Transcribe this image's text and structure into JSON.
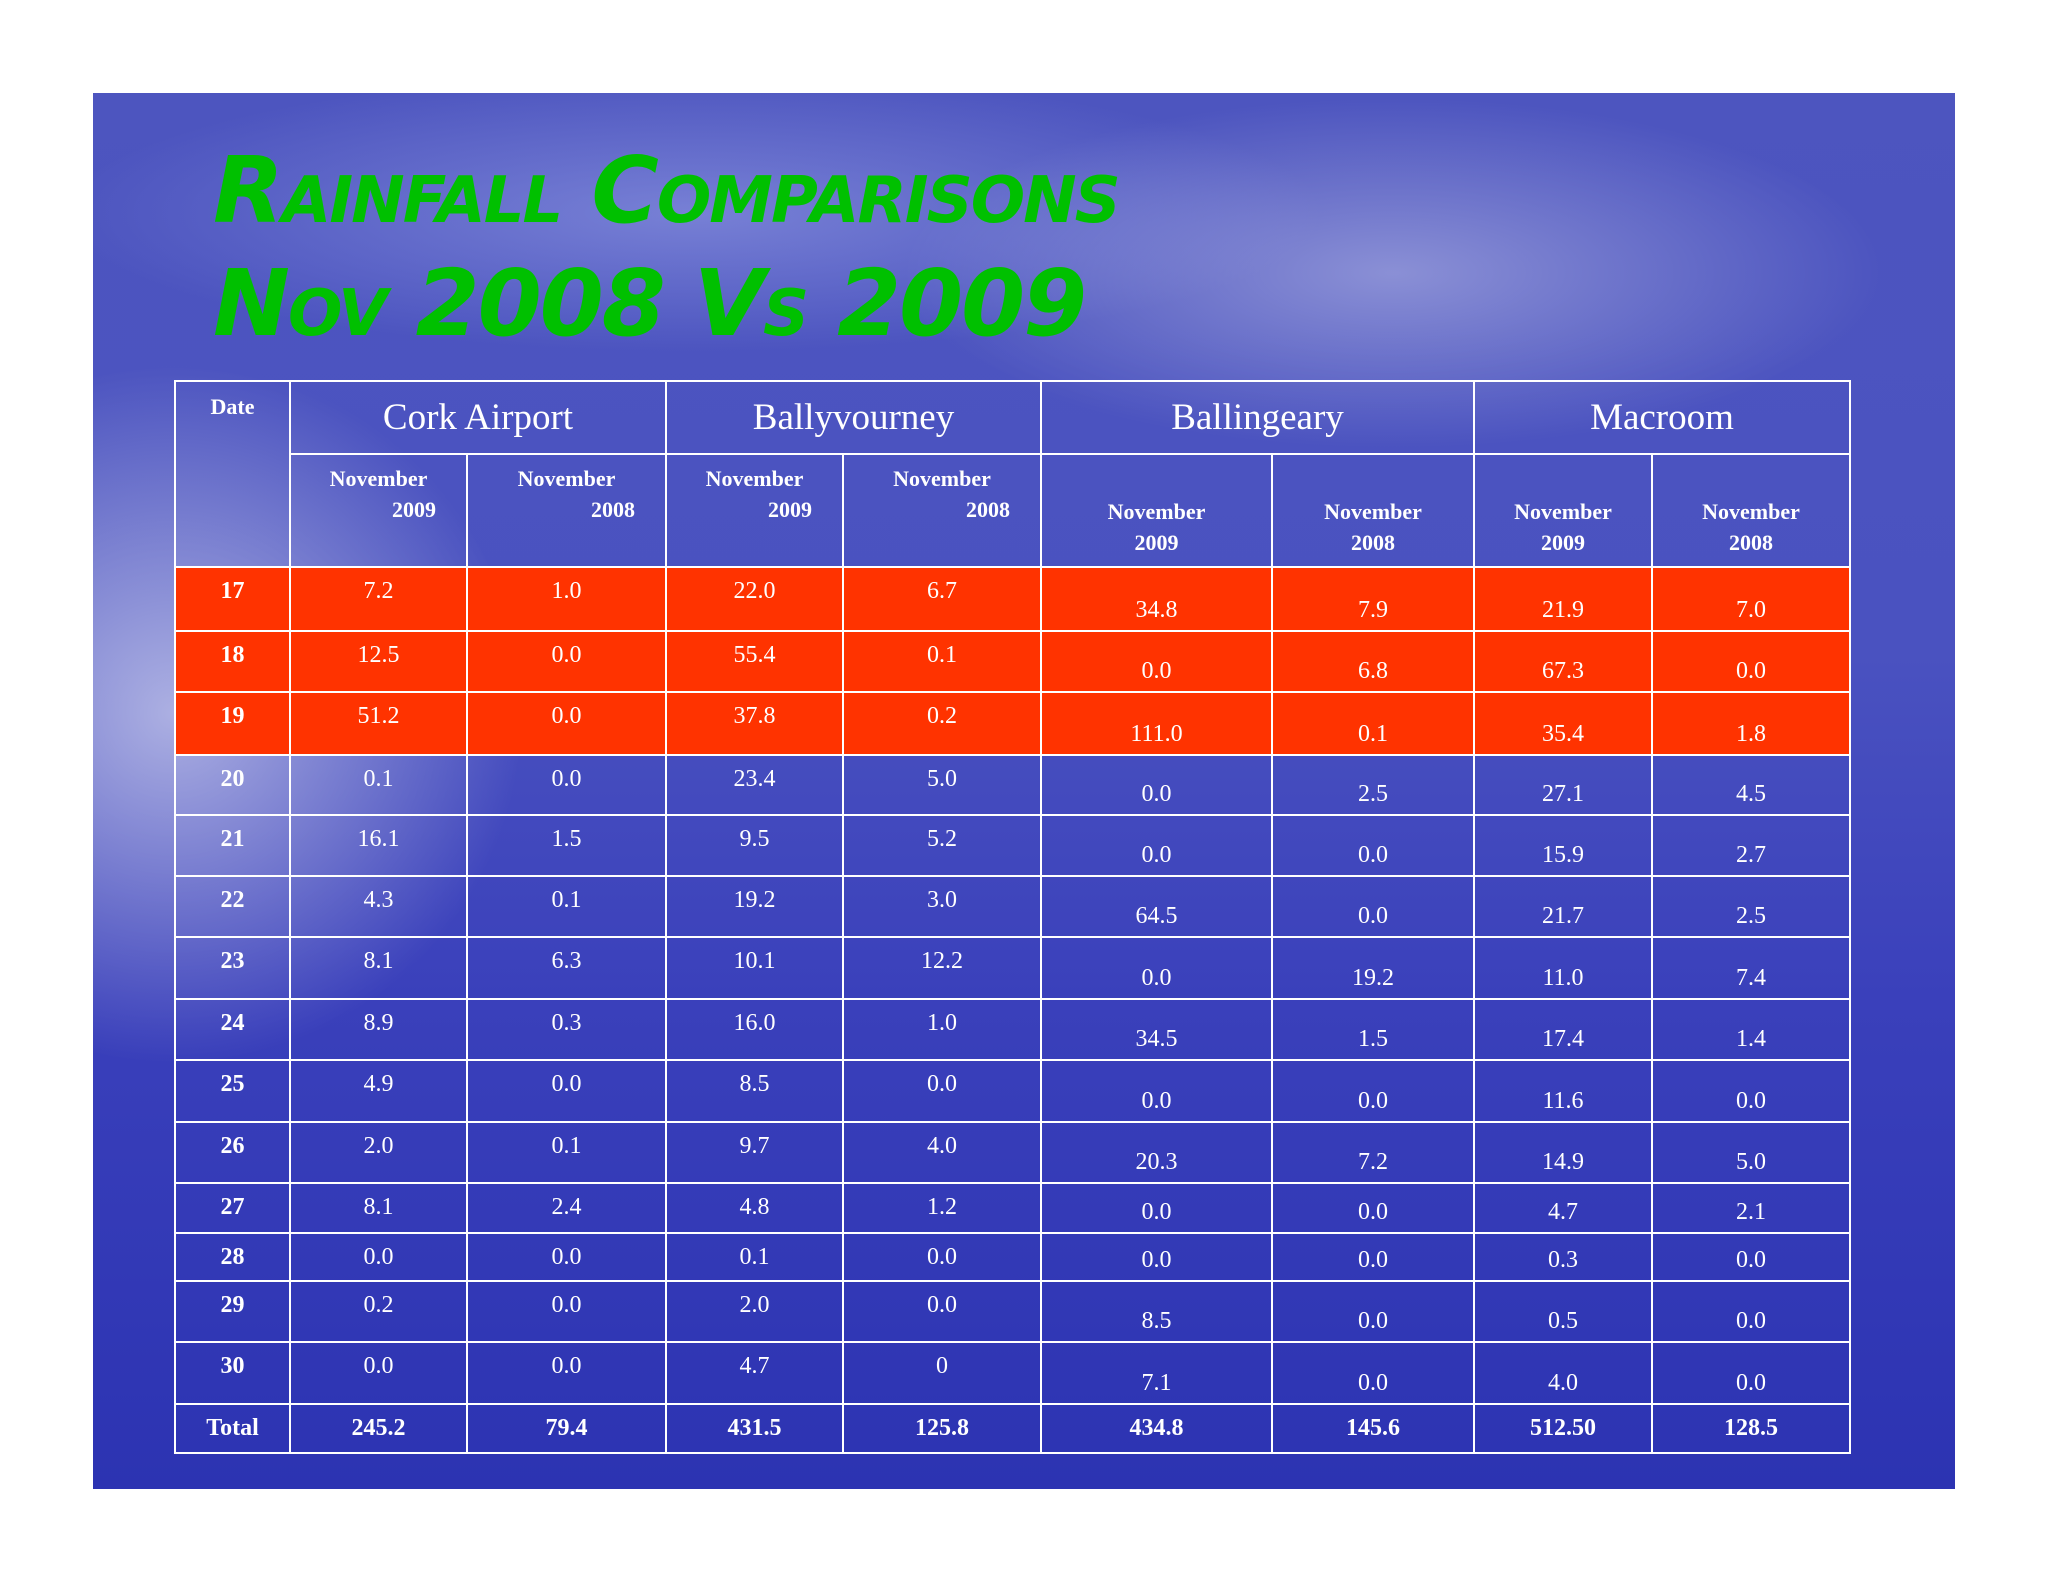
{
  "title": {
    "line1": "Rainfall Comparisons",
    "line2": "Nov 2008 Vs 2009"
  },
  "table": {
    "date_header": "Date",
    "groups": [
      "Cork Airport",
      "Ballyvourney",
      "Ballingeary",
      "Macroom"
    ],
    "subheaders": [
      {
        "month": "November",
        "year": "2009"
      },
      {
        "month": "November",
        "year": "2008"
      },
      {
        "month": "November",
        "year": "2009"
      },
      {
        "month": "November",
        "year": "2008"
      },
      {
        "month": "November",
        "year": "2009"
      },
      {
        "month": "November",
        "year": "2008"
      },
      {
        "month": "November",
        "year": "2009"
      },
      {
        "month": "November",
        "year": "2008"
      }
    ],
    "rows": [
      {
        "date": "17",
        "values": [
          "7.2",
          "1.0",
          "22.0",
          "6.7",
          "34.8",
          "7.9",
          "21.9",
          "7.0"
        ]
      },
      {
        "date": "18",
        "values": [
          "12.5",
          "0.0",
          "55.4",
          "0.1",
          "0.0",
          "6.8",
          "67.3",
          "0.0"
        ]
      },
      {
        "date": "19",
        "values": [
          "51.2",
          "0.0",
          "37.8",
          "0.2",
          "111.0",
          "0.1",
          "35.4",
          "1.8"
        ]
      },
      {
        "date": "20",
        "values": [
          "0.1",
          "0.0",
          "23.4",
          "5.0",
          "0.0",
          "2.5",
          "27.1",
          "4.5"
        ]
      },
      {
        "date": "21",
        "values": [
          "16.1",
          "1.5",
          "9.5",
          "5.2",
          "0.0",
          "0.0",
          "15.9",
          "2.7"
        ]
      },
      {
        "date": "22",
        "values": [
          "4.3",
          "0.1",
          "19.2",
          "3.0",
          "64.5",
          "0.0",
          "21.7",
          "2.5"
        ]
      },
      {
        "date": "23",
        "values": [
          "8.1",
          "6.3",
          "10.1",
          "12.2",
          "0.0",
          "19.2",
          "11.0",
          "7.4"
        ]
      },
      {
        "date": "24",
        "values": [
          "8.9",
          "0.3",
          "16.0",
          "1.0",
          "34.5",
          "1.5",
          "17.4",
          "1.4"
        ]
      },
      {
        "date": "25",
        "values": [
          "4.9",
          "0.0",
          "8.5",
          "0.0",
          "0.0",
          "0.0",
          "11.6",
          "0.0"
        ]
      },
      {
        "date": "26",
        "values": [
          "2.0",
          "0.1",
          "9.7",
          "4.0",
          "20.3",
          "7.2",
          "14.9",
          "5.0"
        ]
      },
      {
        "date": "27",
        "values": [
          "8.1",
          "2.4",
          "4.8",
          "1.2",
          "0.0",
          "0.0",
          "4.7",
          "2.1"
        ]
      },
      {
        "date": "28",
        "values": [
          "0.0",
          "0.0",
          "0.1",
          "0.0",
          "0.0",
          "0.0",
          "0.3",
          "0.0"
        ]
      },
      {
        "date": "29",
        "values": [
          "0.2",
          "0.0",
          "2.0",
          "0.0",
          "8.5",
          "0.0",
          "0.5",
          "0.0"
        ]
      },
      {
        "date": "30",
        "values": [
          "0.0",
          "0.0",
          "4.7",
          "0",
          "7.1",
          "0.0",
          "4.0",
          "0.0"
        ]
      }
    ],
    "total": {
      "label": "Total",
      "values": [
        "245.2",
        "79.4",
        "431.5",
        "125.8",
        "434.8",
        "145.6",
        "512.50",
        "128.5"
      ]
    }
  }
}
